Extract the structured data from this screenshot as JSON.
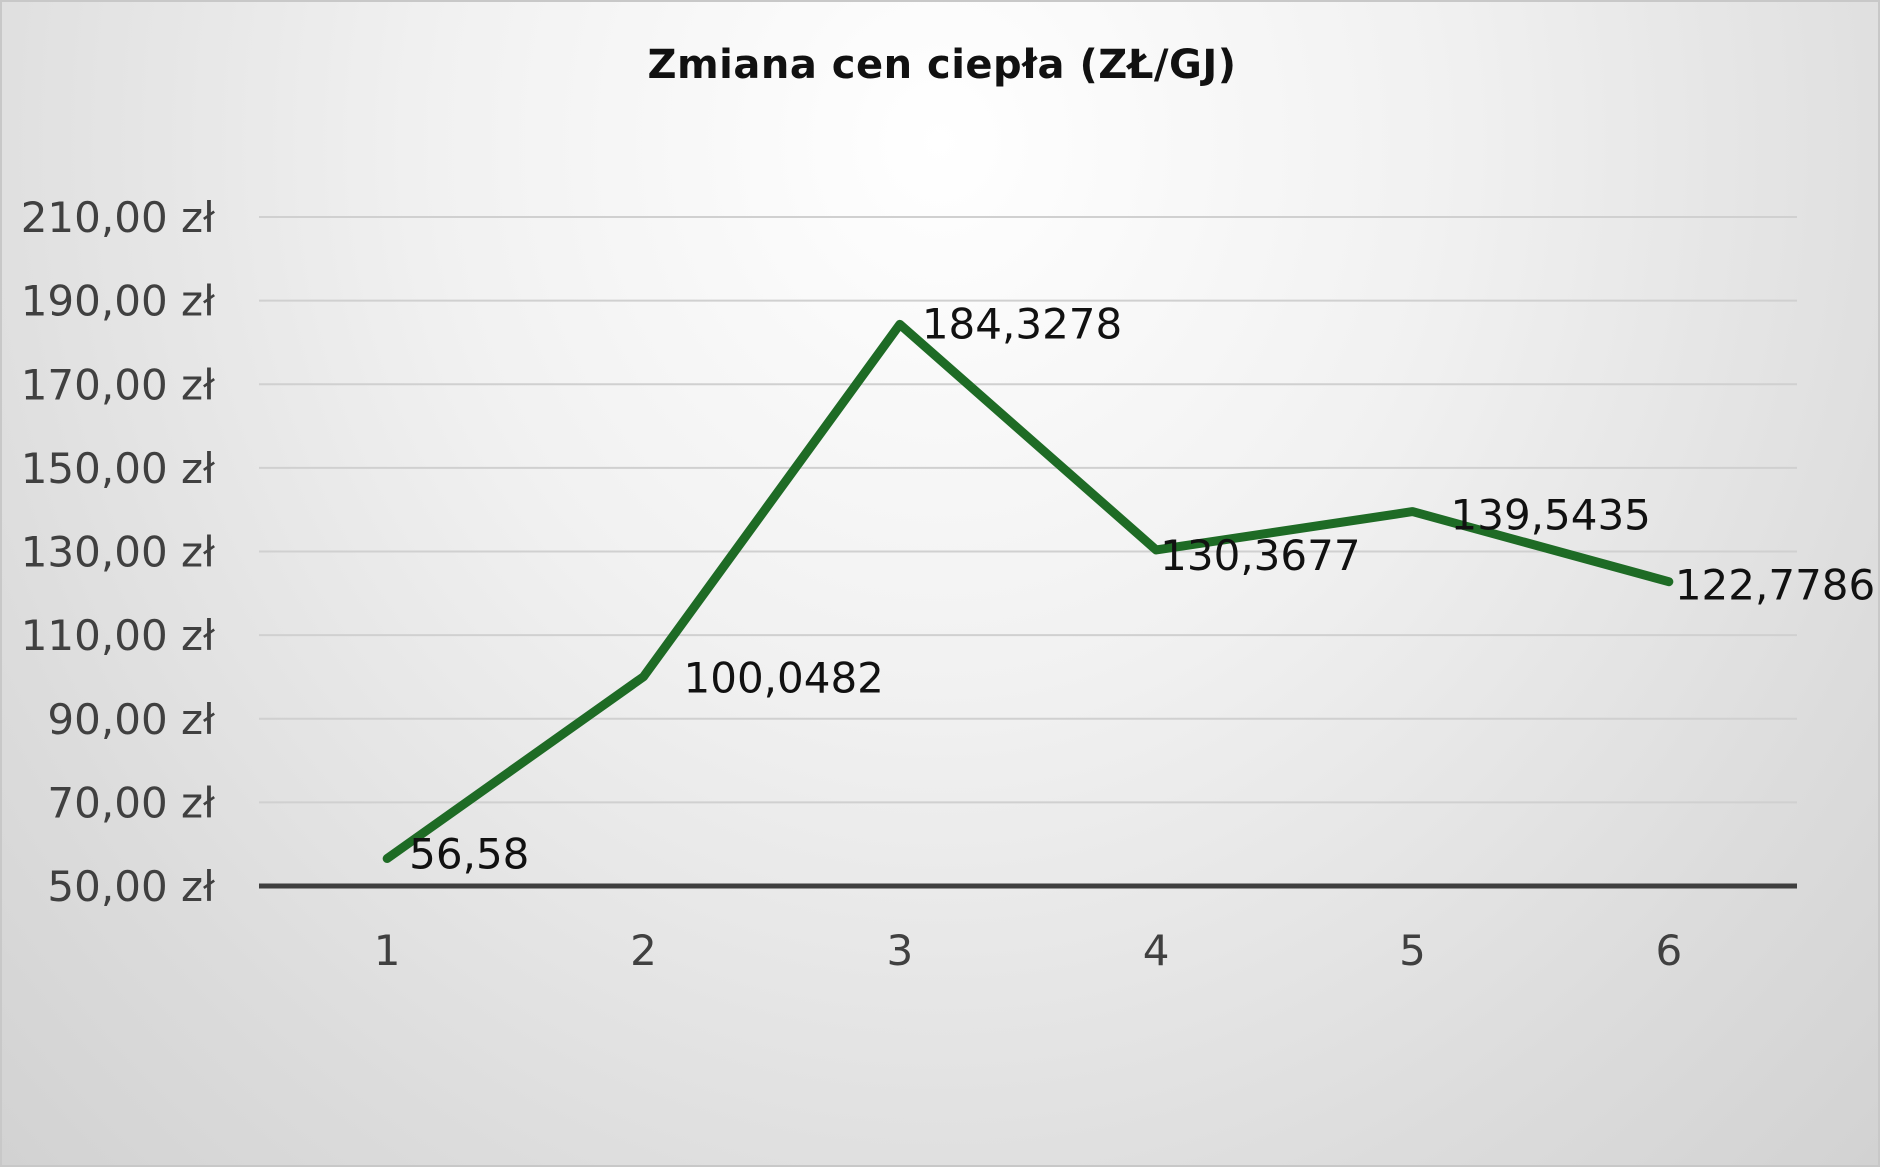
{
  "chart_data": {
    "type": "line",
    "title": "Zmiana cen ciepła (ZŁ/GJ)",
    "xlabel": "",
    "ylabel": "",
    "categories": [
      "1",
      "2",
      "3",
      "4",
      "5",
      "6"
    ],
    "series": [
      {
        "values": [
          56.58,
          100.0482,
          184.3278,
          130.3677,
          139.5435,
          122.7786
        ],
        "data_labels": [
          "56,58",
          "100,0482",
          "184,3278",
          "130,3677",
          "139,5435",
          "122,7786"
        ],
        "color": "#1e6b25"
      }
    ],
    "ylim": [
      50,
      210
    ],
    "yticks": [
      50,
      70,
      90,
      110,
      130,
      150,
      170,
      190,
      210
    ],
    "ytick_labels": [
      "50,00 zł",
      "70,00 zł",
      "90,00 zł",
      "110,00 zł",
      "130,00 zł",
      "150,00 zł",
      "170,00 zł",
      "190,00 zł",
      "210,00 zł"
    ],
    "grid": true,
    "legend": "none"
  }
}
